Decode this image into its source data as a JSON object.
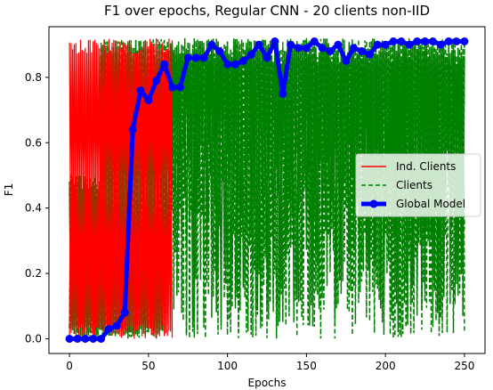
{
  "chart_data": {
    "type": "line",
    "title": "F1 over epochs, Regular CNN - 20 clients non-IID",
    "xlabel": "Epochs",
    "ylabel": "F1",
    "xlim": [
      -13,
      263
    ],
    "ylim": [
      -0.045,
      0.955
    ],
    "xticks": [
      0,
      50,
      100,
      150,
      200,
      250
    ],
    "yticks": [
      0.0,
      0.2,
      0.4,
      0.6,
      0.8
    ],
    "ytick_labels": [
      "0.0",
      "0.2",
      "0.4",
      "0.6",
      "0.8"
    ],
    "grid": false,
    "legend_position": "center-right",
    "series": [
      {
        "name": "Ind. Clients",
        "color": "#ff0000",
        "style": "solid",
        "description_hidden": true,
        "x_range": [
          0,
          250
        ],
        "low": 0.0,
        "high": 0.92
      },
      {
        "name": "Clients",
        "color": "#008000",
        "style": "dashed",
        "x_range": [
          0,
          250
        ],
        "low": 0.0,
        "high": 0.92
      },
      {
        "name": "Global Model",
        "color": "#0000ff",
        "style": "solid-marker",
        "x": [
          0,
          5,
          10,
          15,
          20,
          25,
          30,
          35,
          40,
          45,
          50,
          55,
          60,
          65,
          70,
          75,
          80,
          85,
          90,
          95,
          100,
          105,
          110,
          115,
          120,
          125,
          130,
          135,
          140,
          145,
          150,
          155,
          160,
          165,
          170,
          175,
          180,
          185,
          190,
          195,
          200,
          205,
          210,
          215,
          220,
          225,
          230,
          235,
          240,
          245,
          250
        ],
        "y": [
          0.0,
          0.0,
          0.0,
          0.0,
          0.0,
          0.03,
          0.04,
          0.08,
          0.64,
          0.76,
          0.73,
          0.79,
          0.84,
          0.77,
          0.77,
          0.86,
          0.86,
          0.86,
          0.9,
          0.88,
          0.84,
          0.84,
          0.85,
          0.87,
          0.9,
          0.86,
          0.91,
          0.75,
          0.9,
          0.89,
          0.89,
          0.91,
          0.89,
          0.88,
          0.9,
          0.85,
          0.89,
          0.88,
          0.87,
          0.9,
          0.9,
          0.91,
          0.91,
          0.9,
          0.91,
          0.91,
          0.91,
          0.9,
          0.91,
          0.91,
          0.91
        ]
      }
    ]
  }
}
